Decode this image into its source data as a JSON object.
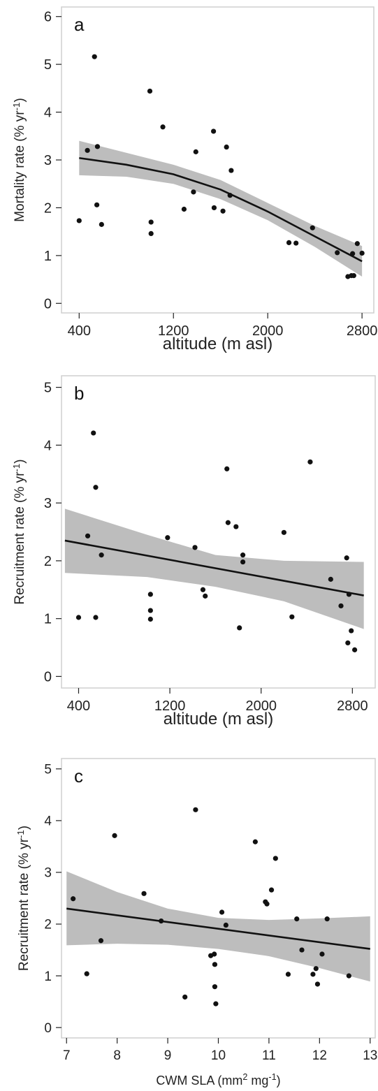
{
  "chart_data": [
    {
      "panel": "a",
      "type": "scatter",
      "xlabel": "altitude (m asl)",
      "ylabel": "Mortality rate (% yr",
      "ylabel_sup": "-1",
      "ylabel_tail": ")",
      "xlim": [
        250,
        2900
      ],
      "ylim": [
        -0.2,
        6.2
      ],
      "xticks": [
        400,
        1200,
        2000,
        2800
      ],
      "yticks": [
        0,
        1,
        2,
        3,
        4,
        5,
        6
      ],
      "points": [
        {
          "x": 400,
          "y": 1.73
        },
        {
          "x": 470,
          "y": 3.2
        },
        {
          "x": 530,
          "y": 5.16
        },
        {
          "x": 550,
          "y": 2.06
        },
        {
          "x": 555,
          "y": 3.28
        },
        {
          "x": 590,
          "y": 1.65
        },
        {
          "x": 1000,
          "y": 4.44
        },
        {
          "x": 1010,
          "y": 1.7
        },
        {
          "x": 1010,
          "y": 1.46
        },
        {
          "x": 1110,
          "y": 3.69
        },
        {
          "x": 1290,
          "y": 1.97
        },
        {
          "x": 1370,
          "y": 2.33
        },
        {
          "x": 1390,
          "y": 3.17
        },
        {
          "x": 1540,
          "y": 3.6
        },
        {
          "x": 1545,
          "y": 2.0
        },
        {
          "x": 1620,
          "y": 1.93
        },
        {
          "x": 1650,
          "y": 3.27
        },
        {
          "x": 1680,
          "y": 2.26
        },
        {
          "x": 1690,
          "y": 2.78
        },
        {
          "x": 2180,
          "y": 1.27
        },
        {
          "x": 2240,
          "y": 1.26
        },
        {
          "x": 2380,
          "y": 1.58
        },
        {
          "x": 2590,
          "y": 1.06
        },
        {
          "x": 2680,
          "y": 0.56
        },
        {
          "x": 2710,
          "y": 0.58
        },
        {
          "x": 2720,
          "y": 1.04
        },
        {
          "x": 2730,
          "y": 0.58
        },
        {
          "x": 2760,
          "y": 1.25
        },
        {
          "x": 2800,
          "y": 1.05
        }
      ],
      "fit": [
        {
          "x": 400,
          "y": 3.04
        },
        {
          "x": 800,
          "y": 2.9
        },
        {
          "x": 1200,
          "y": 2.7
        },
        {
          "x": 1600,
          "y": 2.38
        },
        {
          "x": 2000,
          "y": 1.92
        },
        {
          "x": 2400,
          "y": 1.4
        },
        {
          "x": 2800,
          "y": 0.88
        }
      ],
      "ci_upper": [
        {
          "x": 400,
          "y": 3.4
        },
        {
          "x": 800,
          "y": 3.15
        },
        {
          "x": 1200,
          "y": 2.9
        },
        {
          "x": 1600,
          "y": 2.58
        },
        {
          "x": 2000,
          "y": 2.1
        },
        {
          "x": 2400,
          "y": 1.62
        },
        {
          "x": 2800,
          "y": 1.2
        }
      ],
      "ci_lower": [
        {
          "x": 400,
          "y": 2.68
        },
        {
          "x": 800,
          "y": 2.65
        },
        {
          "x": 1200,
          "y": 2.5
        },
        {
          "x": 1600,
          "y": 2.18
        },
        {
          "x": 2000,
          "y": 1.74
        },
        {
          "x": 2400,
          "y": 1.18
        },
        {
          "x": 2800,
          "y": 0.56
        }
      ],
      "band_color": "#bdbdbd",
      "line_color": "#111111",
      "point_color": "#111111",
      "grid": false,
      "box": true
    },
    {
      "panel": "b",
      "type": "scatter",
      "xlabel": "altitude (m asl)",
      "ylabel": "Recruitment  rate (% yr",
      "ylabel_sup": "-1",
      "ylabel_tail": ")",
      "xlim": [
        250,
        3000
      ],
      "ylim": [
        -0.2,
        5.2
      ],
      "xticks": [
        400,
        1200,
        2000,
        2800
      ],
      "yticks": [
        0,
        1,
        2,
        3,
        4,
        5
      ],
      "points": [
        {
          "x": 400,
          "y": 1.02
        },
        {
          "x": 480,
          "y": 2.43
        },
        {
          "x": 530,
          "y": 4.21
        },
        {
          "x": 550,
          "y": 3.27
        },
        {
          "x": 550,
          "y": 1.02
        },
        {
          "x": 600,
          "y": 2.1
        },
        {
          "x": 1030,
          "y": 1.42
        },
        {
          "x": 1030,
          "y": 1.14
        },
        {
          "x": 1030,
          "y": 0.99
        },
        {
          "x": 1180,
          "y": 2.4
        },
        {
          "x": 1420,
          "y": 2.23
        },
        {
          "x": 1490,
          "y": 1.5
        },
        {
          "x": 1510,
          "y": 1.39
        },
        {
          "x": 1700,
          "y": 3.59
        },
        {
          "x": 1710,
          "y": 2.66
        },
        {
          "x": 1780,
          "y": 2.59
        },
        {
          "x": 1810,
          "y": 0.84
        },
        {
          "x": 1840,
          "y": 2.1
        },
        {
          "x": 1840,
          "y": 1.98
        },
        {
          "x": 2200,
          "y": 2.49
        },
        {
          "x": 2270,
          "y": 1.03
        },
        {
          "x": 2430,
          "y": 3.71
        },
        {
          "x": 2610,
          "y": 1.68
        },
        {
          "x": 2700,
          "y": 1.22
        },
        {
          "x": 2750,
          "y": 2.05
        },
        {
          "x": 2760,
          "y": 0.58
        },
        {
          "x": 2770,
          "y": 1.42
        },
        {
          "x": 2790,
          "y": 0.79
        },
        {
          "x": 2820,
          "y": 0.46
        }
      ],
      "fit": [
        {
          "x": 280,
          "y": 2.35
        },
        {
          "x": 2900,
          "y": 1.4
        }
      ],
      "ci_upper": [
        {
          "x": 280,
          "y": 2.9
        },
        {
          "x": 1000,
          "y": 2.45
        },
        {
          "x": 1600,
          "y": 2.1
        },
        {
          "x": 2200,
          "y": 2.0
        },
        {
          "x": 2900,
          "y": 1.98
        }
      ],
      "ci_lower": [
        {
          "x": 280,
          "y": 1.79
        },
        {
          "x": 1000,
          "y": 1.72
        },
        {
          "x": 1600,
          "y": 1.55
        },
        {
          "x": 2200,
          "y": 1.3
        },
        {
          "x": 2900,
          "y": 0.82
        }
      ],
      "band_color": "#bdbdbd",
      "line_color": "#111111",
      "point_color": "#111111",
      "grid": false,
      "box": true
    },
    {
      "panel": "c",
      "type": "scatter",
      "xlabel": "CWM SLA (mm",
      "xlabel_sup": "2",
      "xlabel_mid": " mg",
      "xlabel_sup2": "-1",
      "xlabel_tail": ")",
      "ylabel": "Recruitment  rate (% yr",
      "ylabel_sup": "-1",
      "ylabel_tail": ")",
      "xlim": [
        6.9,
        13.1
      ],
      "ylim": [
        -0.2,
        5.2
      ],
      "xticks": [
        7,
        8,
        9,
        10,
        11,
        12,
        13
      ],
      "yticks": [
        0,
        1,
        2,
        3,
        4,
        5
      ],
      "points": [
        {
          "x": 7.13,
          "y": 2.49
        },
        {
          "x": 7.4,
          "y": 1.04
        },
        {
          "x": 7.68,
          "y": 1.68
        },
        {
          "x": 7.95,
          "y": 3.71
        },
        {
          "x": 8.53,
          "y": 2.59
        },
        {
          "x": 8.87,
          "y": 2.06
        },
        {
          "x": 9.34,
          "y": 0.59
        },
        {
          "x": 9.55,
          "y": 4.21
        },
        {
          "x": 9.85,
          "y": 1.39
        },
        {
          "x": 9.92,
          "y": 1.42
        },
        {
          "x": 9.93,
          "y": 1.22
        },
        {
          "x": 9.93,
          "y": 0.79
        },
        {
          "x": 9.95,
          "y": 0.46
        },
        {
          "x": 10.07,
          "y": 2.23
        },
        {
          "x": 10.15,
          "y": 1.98
        },
        {
          "x": 10.73,
          "y": 3.59
        },
        {
          "x": 10.93,
          "y": 2.43
        },
        {
          "x": 10.96,
          "y": 2.39
        },
        {
          "x": 11.05,
          "y": 2.66
        },
        {
          "x": 11.13,
          "y": 3.27
        },
        {
          "x": 11.38,
          "y": 1.03
        },
        {
          "x": 11.55,
          "y": 2.1
        },
        {
          "x": 11.65,
          "y": 1.5
        },
        {
          "x": 11.87,
          "y": 1.03
        },
        {
          "x": 11.93,
          "y": 1.14
        },
        {
          "x": 11.96,
          "y": 0.84
        },
        {
          "x": 12.05,
          "y": 1.42
        },
        {
          "x": 12.15,
          "y": 2.1
        },
        {
          "x": 12.58,
          "y": 1.0
        }
      ],
      "fit": [
        {
          "x": 7.0,
          "y": 2.3
        },
        {
          "x": 13.0,
          "y": 1.52
        }
      ],
      "ci_upper": [
        {
          "x": 7.0,
          "y": 3.02
        },
        {
          "x": 8.0,
          "y": 2.62
        },
        {
          "x": 9.0,
          "y": 2.3
        },
        {
          "x": 10.0,
          "y": 2.12
        },
        {
          "x": 11.0,
          "y": 2.08
        },
        {
          "x": 12.0,
          "y": 2.11
        },
        {
          "x": 13.0,
          "y": 2.15
        }
      ],
      "ci_lower": [
        {
          "x": 7.0,
          "y": 1.59
        },
        {
          "x": 8.0,
          "y": 1.62
        },
        {
          "x": 9.0,
          "y": 1.6
        },
        {
          "x": 10.0,
          "y": 1.52
        },
        {
          "x": 11.0,
          "y": 1.38
        },
        {
          "x": 12.0,
          "y": 1.15
        },
        {
          "x": 13.0,
          "y": 0.89
        }
      ],
      "band_color": "#bdbdbd",
      "line_color": "#111111",
      "point_color": "#111111",
      "grid": false,
      "box": true
    }
  ]
}
